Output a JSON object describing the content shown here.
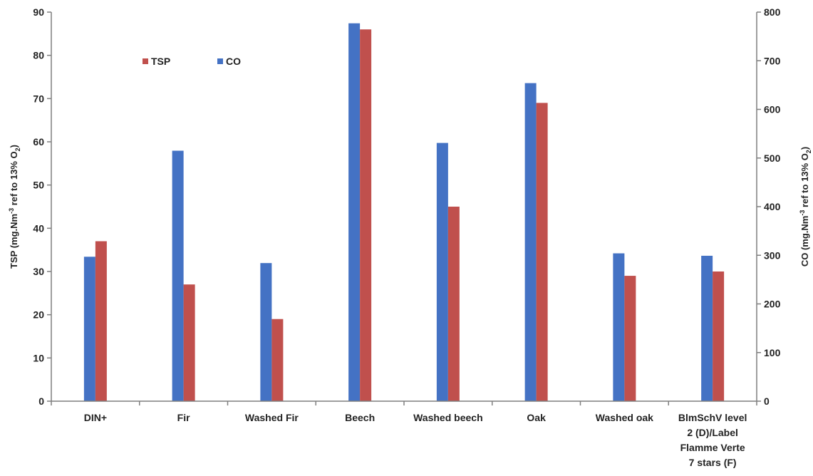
{
  "chart_data": {
    "type": "bar",
    "categories": [
      [
        "DIN+"
      ],
      [
        "Fir"
      ],
      [
        "Washed Fir"
      ],
      [
        "Beech"
      ],
      [
        "Washed beech"
      ],
      [
        "Oak"
      ],
      [
        "Washed oak"
      ],
      [
        "BlmSchV level",
        "2 (D)/Label",
        "Flamme Verte",
        "7 stars (F)"
      ]
    ],
    "series": [
      {
        "name": "CO",
        "axis": "right",
        "color": "#4472C4",
        "values": [
          297,
          515,
          284,
          777,
          531,
          654,
          304,
          299
        ]
      },
      {
        "name": "TSP",
        "axis": "left",
        "color": "#C0504D",
        "values": [
          37,
          27,
          19,
          86,
          45,
          69,
          29,
          30
        ]
      }
    ],
    "y_left": {
      "label_main": "TSP (mg.Nm",
      "label_sup": "-3",
      "label_mid": " ref to 13% O",
      "label_sub": "2",
      "label_end": ")",
      "ylim": [
        0,
        90
      ],
      "ticks": [
        "0",
        "10",
        "20",
        "30",
        "40",
        "50",
        "60",
        "70",
        "80",
        "90"
      ]
    },
    "y_right": {
      "label_main": "CO (mg.Nm",
      "label_sup": "-3",
      "label_mid": " ref to 13% O",
      "label_sub": "2",
      "label_end": ")",
      "ylim": [
        0,
        800
      ],
      "ticks": [
        "0",
        "100",
        "200",
        "300",
        "400",
        "500",
        "600",
        "700",
        "800"
      ]
    },
    "legend": {
      "placement": "top-left",
      "items": [
        {
          "label": "TSP",
          "color": "#C0504D"
        },
        {
          "label": "CO",
          "color": "#4472C4"
        }
      ]
    },
    "grid": false
  }
}
